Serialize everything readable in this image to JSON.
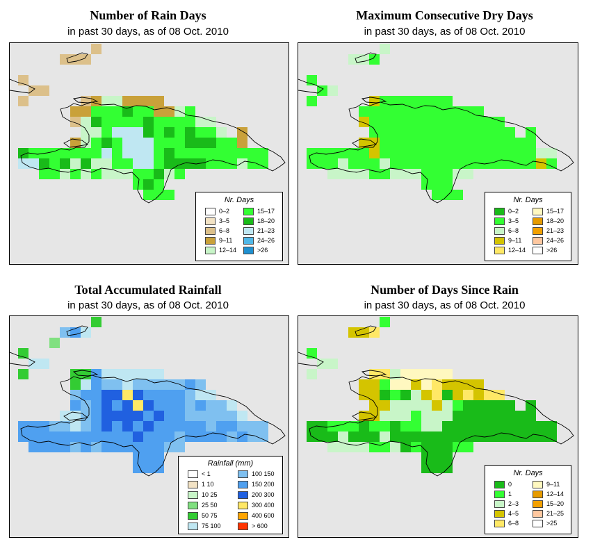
{
  "panels": [
    {
      "title": "Number of Rain Days",
      "subtitle": "in past 30 days, as of  08 Oct. 2010",
      "legend": {
        "title": "Nr. Days",
        "items": [
          {
            "label": "0–2",
            "color": "#ffffff"
          },
          {
            "label": "3–5",
            "color": "#f3e3c5"
          },
          {
            "label": "6–8",
            "color": "#dcc08a"
          },
          {
            "label": "9–11",
            "color": "#c9a13a"
          },
          {
            "label": "12–14",
            "color": "#c8f5c8"
          },
          {
            "label": "15–17",
            "color": "#33ff33"
          },
          {
            "label": "18–20",
            "color": "#19bb19"
          },
          {
            "label": "21–23",
            "color": "#bfe7f2"
          },
          {
            "label": "24–26",
            "color": "#4fb8e8"
          },
          {
            "label": ">26",
            "color": "#1f90d0"
          }
        ]
      }
    },
    {
      "title": "Maximum Consecutive Dry Days",
      "subtitle": "in past 30 days, as of  08 Oct. 2010",
      "legend": {
        "title": "Nr. Days",
        "items": [
          {
            "label": "0–2",
            "color": "#19bb19"
          },
          {
            "label": "3–5",
            "color": "#33ff33"
          },
          {
            "label": "6–8",
            "color": "#c8f5c8"
          },
          {
            "label": "9–11",
            "color": "#d4c400"
          },
          {
            "label": "12–14",
            "color": "#ffe866"
          },
          {
            "label": "15–17",
            "color": "#fff8c0"
          },
          {
            "label": "18–20",
            "color": "#e69b00"
          },
          {
            "label": "21–23",
            "color": "#f2a000"
          },
          {
            "label": "24–26",
            "color": "#ffc8a0"
          },
          {
            "label": ">26",
            "color": "#ffffff"
          }
        ]
      }
    },
    {
      "title": "Total Accumulated Rainfall",
      "subtitle": "in past 30 days, as of  08 Oct. 2010",
      "legend": {
        "title": "Rainfall (mm)",
        "items": [
          {
            "label": "< 1",
            "color": "#ffffff"
          },
          {
            "label": "1    10",
            "color": "#f3e3c5"
          },
          {
            "label": "10    25",
            "color": "#c8f5c8"
          },
          {
            "label": "25    50",
            "color": "#80e080"
          },
          {
            "label": "50    75",
            "color": "#33cc33"
          },
          {
            "label": "75   100",
            "color": "#bfe7f2"
          },
          {
            "label": "100   150",
            "color": "#7fc0f0"
          },
          {
            "label": "150   200",
            "color": "#4fa0f0"
          },
          {
            "label": "200   300",
            "color": "#2060e0"
          },
          {
            "label": "300   400",
            "color": "#ffe866"
          },
          {
            "label": "400   600",
            "color": "#ffa500"
          },
          {
            "label": "> 600",
            "color": "#ff3300"
          }
        ]
      }
    },
    {
      "title": "Number of Days Since Rain",
      "subtitle": "in past 30 days, as of  08 Oct. 2010",
      "legend": {
        "title": "Nr. Days",
        "items": [
          {
            "label": "0",
            "color": "#19bb19"
          },
          {
            "label": "1",
            "color": "#33ff33"
          },
          {
            "label": "2–3",
            "color": "#c8f5c8"
          },
          {
            "label": "4–5",
            "color": "#d4c400"
          },
          {
            "label": "6–8",
            "color": "#ffe866"
          },
          {
            "label": "9–11",
            "color": "#fff8c0"
          },
          {
            "label": "12–14",
            "color": "#e69b00"
          },
          {
            "label": "15–20",
            "color": "#f2a000"
          },
          {
            "label": "21–25",
            "color": "#ffc8a0"
          },
          {
            "label": ">25",
            "color": "#ffffff"
          }
        ]
      }
    }
  ]
}
